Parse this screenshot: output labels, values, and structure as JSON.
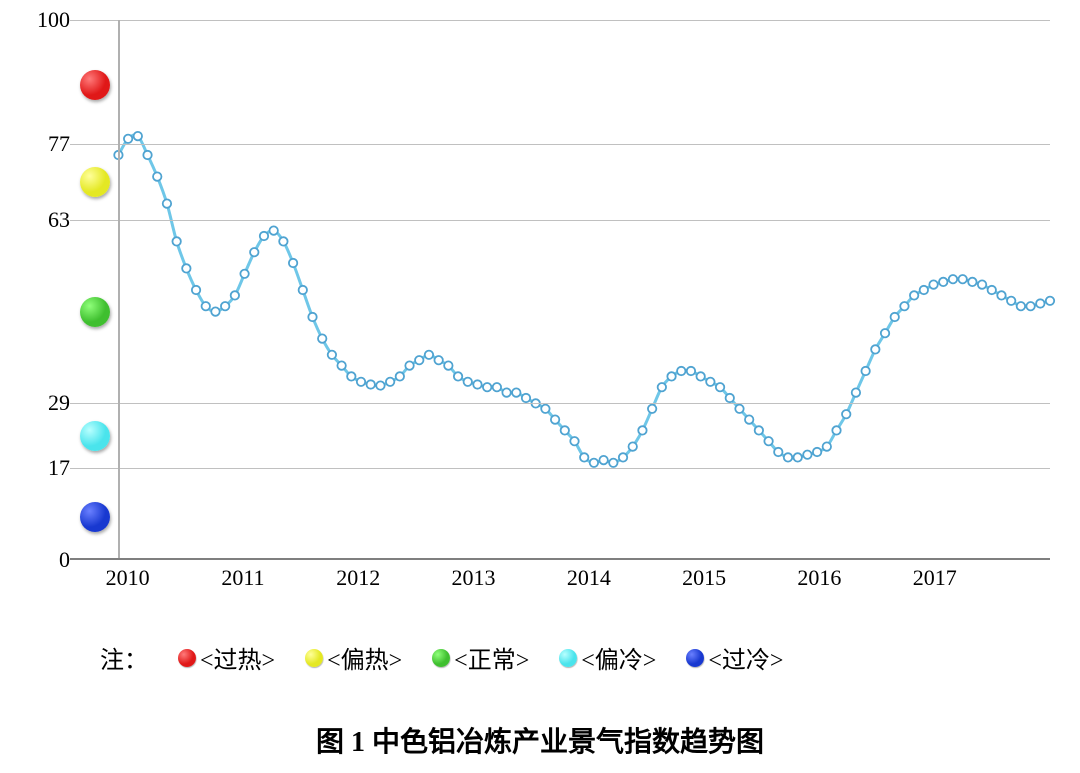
{
  "chart": {
    "type": "line",
    "title": "图 1 中色铝冶炼产业景气指数趋势图",
    "legend_prefix": "注：",
    "background_color": "#ffffff",
    "grid_color": "#c0c0c0",
    "axis_color": "#7f7f7f",
    "line_color": "#6fc7e8",
    "marker_stroke": "#4fa3d1",
    "marker_fill": "#ffffff",
    "marker_radius": 4.2,
    "line_width": 3,
    "y_axis": {
      "min": 0,
      "max": 100,
      "ticks": [
        0,
        17,
        29,
        63,
        77,
        100
      ],
      "label_fontsize": 22,
      "label_color": "#000000"
    },
    "x_axis": {
      "min": 2009.5,
      "max": 2018.0,
      "data_start": 2009.92,
      "tick_labels": [
        "2010",
        "2011",
        "2012",
        "2013",
        "2014",
        "2015",
        "2016",
        "2017"
      ],
      "tick_positions": [
        2010,
        2011,
        2012,
        2013,
        2014,
        2015,
        2016,
        2017
      ],
      "label_fontsize": 22,
      "vline_at": 2009.92
    },
    "zones": [
      {
        "label": "过热",
        "color": "#e01818",
        "highlight": "#ff7a7a",
        "y_center": 88
      },
      {
        "label": "偏热",
        "color": "#e4e823",
        "highlight": "#ffff9a",
        "y_center": 70
      },
      {
        "label": "正常",
        "color": "#3fbf2f",
        "highlight": "#8fff7a",
        "y_center": 46
      },
      {
        "label": "偏冷",
        "color": "#4ae4ec",
        "highlight": "#b8ffff",
        "y_center": 23
      },
      {
        "label": "过冷",
        "color": "#1838d0",
        "highlight": "#6a80ff",
        "y_center": 8
      }
    ],
    "zone_marker_x": 2009.72,
    "zone_marker_radius": 15,
    "series": {
      "name": "景气指数",
      "values": [
        75,
        78,
        78.5,
        75,
        71,
        66,
        59,
        54,
        50,
        47,
        46,
        47,
        49,
        53,
        57,
        60,
        61,
        59,
        55,
        50,
        45,
        41,
        38,
        36,
        34,
        33,
        32.5,
        32.3,
        33,
        34,
        36,
        37,
        38,
        37,
        36,
        34,
        33,
        32.5,
        32,
        32,
        31,
        31,
        30,
        29,
        28,
        26,
        24,
        22,
        19,
        18,
        18.5,
        18,
        19,
        21,
        24,
        28,
        32,
        34,
        35,
        35,
        34,
        33,
        32,
        30,
        28,
        26,
        24,
        22,
        20,
        19,
        19,
        19.5,
        20,
        21,
        24,
        27,
        31,
        35,
        39,
        42,
        45,
        47,
        49,
        50,
        51,
        51.5,
        52,
        52,
        51.5,
        51,
        50,
        49,
        48,
        47,
        47,
        47.5,
        48
      ]
    }
  }
}
